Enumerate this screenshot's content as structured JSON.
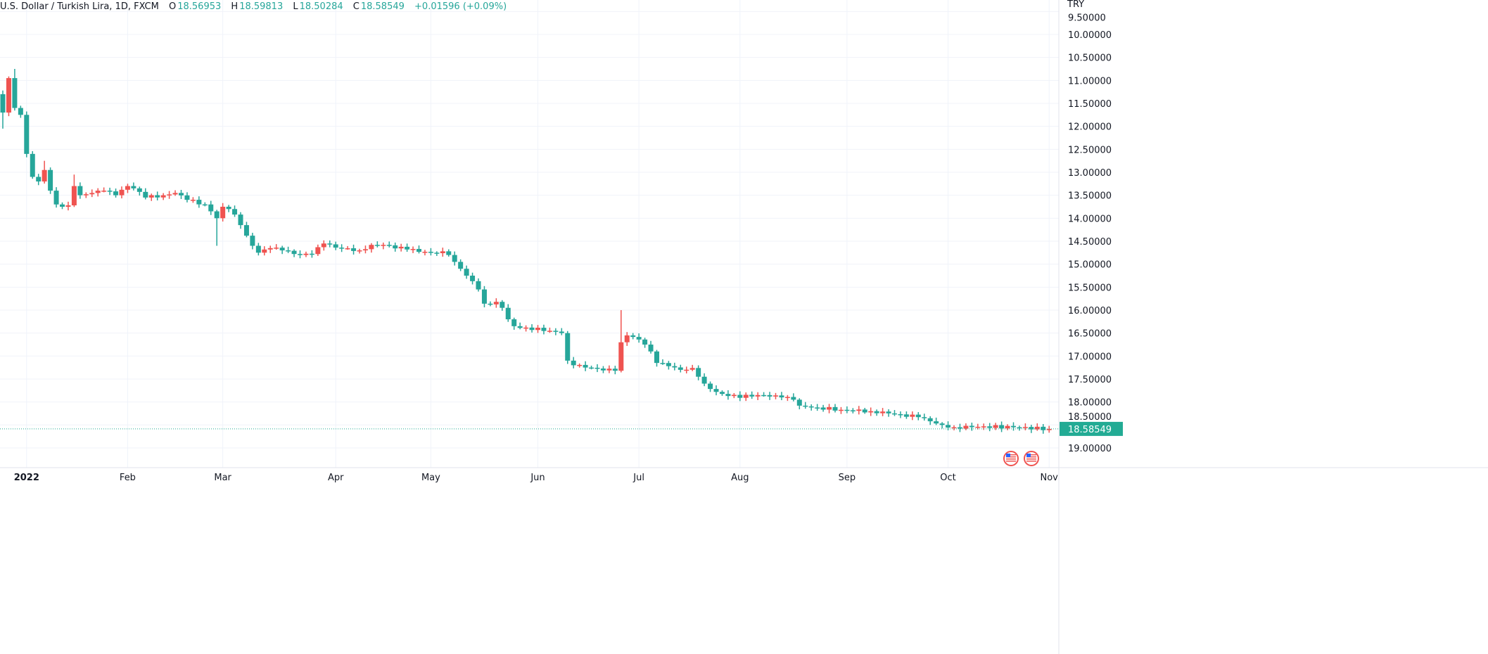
{
  "legend": {
    "symbol": "U.S. Dollar / Turkish Lira, 1D, FXCM",
    "open_label": "O",
    "open": "18.56953",
    "high_label": "H",
    "high": "18.59813",
    "low_label": "L",
    "low": "18.50284",
    "close_label": "C",
    "close": "18.58549",
    "change": "+0.01596 (+0.09%)"
  },
  "axis": {
    "currency": "TRY",
    "last_price_label": "18.58549"
  },
  "colors": {
    "up": "#26a69a",
    "down": "#ef5350",
    "grid": "#f0f3fa",
    "last_price": "#22ab94"
  },
  "chart_data": {
    "type": "candlestick",
    "title": "U.S. Dollar / Turkish Lira, 1D, FXCM",
    "y_scale": "inverted",
    "ylim": [
      9.5,
      19.25
    ],
    "y_ticks": [
      "9.50000",
      "10.00000",
      "10.50000",
      "11.00000",
      "11.50000",
      "12.00000",
      "12.50000",
      "13.00000",
      "13.50000",
      "14.00000",
      "14.50000",
      "15.00000",
      "15.50000",
      "16.00000",
      "16.50000",
      "17.00000",
      "17.50000",
      "18.00000",
      "18.50000",
      "19.00000"
    ],
    "x_ticks": [
      {
        "label": "2022",
        "day": 4,
        "bold": true
      },
      {
        "label": "Feb",
        "day": 21
      },
      {
        "label": "Mar",
        "day": 37
      },
      {
        "label": "Apr",
        "day": 56
      },
      {
        "label": "May",
        "day": 72
      },
      {
        "label": "Jun",
        "day": 90
      },
      {
        "label": "Jul",
        "day": 107
      },
      {
        "label": "Aug",
        "day": 124
      },
      {
        "label": "Sep",
        "day": 142
      },
      {
        "label": "Oct",
        "day": 159
      },
      {
        "label": "Nov",
        "day": 176
      }
    ],
    "last_price": 18.58549,
    "close_keypoints": [
      [
        0,
        11.7
      ],
      [
        1,
        10.95
      ],
      [
        2,
        11.6
      ],
      [
        3,
        11.75
      ],
      [
        4,
        12.6
      ],
      [
        5,
        13.1
      ],
      [
        6,
        13.2
      ],
      [
        7,
        12.95
      ],
      [
        8,
        13.4
      ],
      [
        9,
        13.7
      ],
      [
        10,
        13.75
      ],
      [
        11,
        13.72
      ],
      [
        12,
        13.3
      ],
      [
        13,
        13.5
      ],
      [
        15,
        13.45
      ],
      [
        17,
        13.4
      ],
      [
        19,
        13.5
      ],
      [
        21,
        13.3
      ],
      [
        22,
        13.35
      ],
      [
        24,
        13.55
      ],
      [
        27,
        13.5
      ],
      [
        29,
        13.45
      ],
      [
        31,
        13.6
      ],
      [
        34,
        13.7
      ],
      [
        35,
        13.85
      ],
      [
        36,
        14.0
      ],
      [
        37,
        13.75
      ],
      [
        38,
        13.8
      ],
      [
        39,
        13.92
      ],
      [
        40,
        14.15
      ],
      [
        41,
        14.38
      ],
      [
        42,
        14.6
      ],
      [
        43,
        14.75
      ],
      [
        45,
        14.65
      ],
      [
        47,
        14.7
      ],
      [
        50,
        14.8
      ],
      [
        52,
        14.78
      ],
      [
        54,
        14.55
      ],
      [
        56,
        14.64
      ],
      [
        60,
        14.7
      ],
      [
        62,
        14.58
      ],
      [
        64,
        14.58
      ],
      [
        68,
        14.68
      ],
      [
        72,
        14.75
      ],
      [
        74,
        14.72
      ],
      [
        75,
        14.8
      ],
      [
        76,
        14.95
      ],
      [
        77,
        15.1
      ],
      [
        78,
        15.25
      ],
      [
        79,
        15.37
      ],
      [
        80,
        15.55
      ],
      [
        81,
        15.86
      ],
      [
        83,
        15.82
      ],
      [
        84,
        15.95
      ],
      [
        85,
        16.2
      ],
      [
        86,
        16.35
      ],
      [
        88,
        16.38
      ],
      [
        92,
        16.45
      ],
      [
        94,
        16.5
      ],
      [
        95,
        17.1
      ],
      [
        96,
        17.2
      ],
      [
        98,
        17.25
      ],
      [
        103,
        17.32
      ],
      [
        104,
        16.7
      ],
      [
        105,
        16.55
      ],
      [
        107,
        16.64
      ],
      [
        108,
        16.75
      ],
      [
        109,
        16.9
      ],
      [
        110,
        17.15
      ],
      [
        112,
        17.22
      ],
      [
        114,
        17.3
      ],
      [
        116,
        17.26
      ],
      [
        117,
        17.45
      ],
      [
        118,
        17.6
      ],
      [
        120,
        17.78
      ],
      [
        122,
        17.87
      ],
      [
        126,
        17.88
      ],
      [
        128,
        17.85
      ],
      [
        131,
        17.9
      ],
      [
        133,
        17.95
      ],
      [
        134,
        18.08
      ],
      [
        137,
        18.12
      ],
      [
        141,
        18.17
      ],
      [
        146,
        18.2
      ],
      [
        151,
        18.27
      ],
      [
        154,
        18.33
      ],
      [
        156,
        18.42
      ],
      [
        158,
        18.5
      ],
      [
        160,
        18.55
      ],
      [
        165,
        18.53
      ],
      [
        170,
        18.55
      ],
      [
        176,
        18.58549
      ]
    ],
    "wick_extremes": [
      [
        0,
        12.05
      ],
      [
        2,
        10.75
      ],
      [
        7,
        12.75
      ],
      [
        12,
        13.05
      ],
      [
        36,
        14.6
      ],
      [
        104,
        16.0
      ]
    ],
    "events": [
      "us-flag-event",
      "us-flag-event"
    ]
  }
}
